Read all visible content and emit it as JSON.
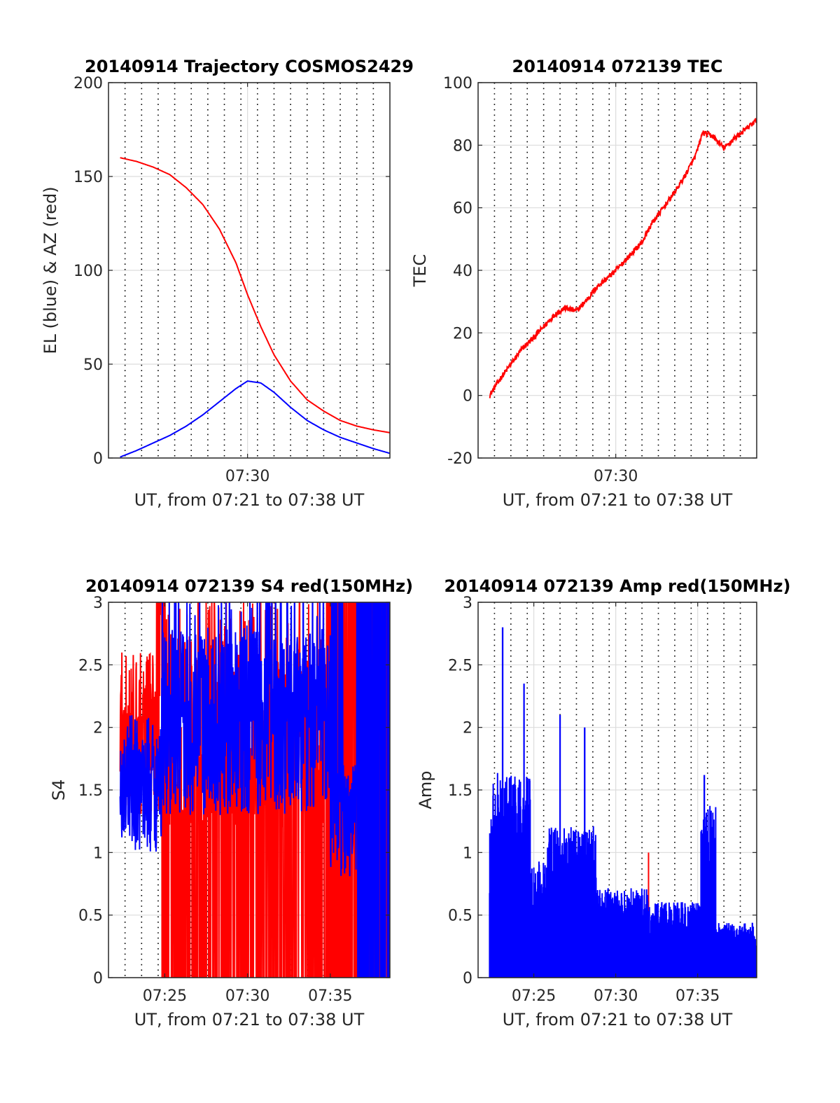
{
  "figure": {
    "background": "#ffffff",
    "colors": {
      "red": "#ff0000",
      "blue": "#0000ff",
      "grid": "#dcdcdc",
      "vline": "#000000"
    },
    "time_start_min": 441.6,
    "time_end_min": 458.6,
    "vertical_dotted_lines_min": [
      442.6,
      443.6,
      444.6,
      445.6,
      446.6,
      447.6,
      448.6,
      449.6,
      450.6,
      451.6,
      452.6,
      453.6,
      454.6,
      455.6,
      456.6,
      457.6
    ]
  },
  "chart_data": [
    {
      "id": "trajectory",
      "type": "line",
      "title": "20140914 Trajectory COSMOS2429",
      "xlabel": "UT, from 07:21 to 07:38 UT",
      "ylabel": "EL (blue) & AZ (red)",
      "xticks": [
        {
          "value": 450,
          "label": "07:30"
        }
      ],
      "ylim": [
        0,
        200
      ],
      "yticks": [
        {
          "value": 0,
          "label": "0"
        },
        {
          "value": 50,
          "label": "50"
        },
        {
          "value": 100,
          "label": "100"
        },
        {
          "value": 150,
          "label": "150"
        },
        {
          "value": 200,
          "label": "200"
        }
      ],
      "grid": true,
      "series": [
        {
          "color": "#ff0000",
          "x": [
            442.3,
            443.3,
            444.3,
            445.3,
            446.3,
            447.3,
            448.3,
            449.3,
            450.0,
            450.8,
            451.6,
            452.6,
            453.6,
            454.6,
            455.6,
            456.6,
            457.6,
            458.6
          ],
          "y": [
            160,
            158,
            155,
            151,
            144,
            135,
            122,
            104,
            87,
            70,
            55,
            41,
            31,
            25,
            20,
            17,
            15,
            13.5
          ]
        },
        {
          "color": "#0000ff",
          "x": [
            442.3,
            443.3,
            444.3,
            445.3,
            446.3,
            447.3,
            448.3,
            449.3,
            450.0,
            450.8,
            451.6,
            452.6,
            453.6,
            454.6,
            455.6,
            456.6,
            457.6,
            458.6
          ],
          "y": [
            0.5,
            4,
            8,
            12,
            17,
            23,
            30,
            37,
            41,
            40,
            35,
            27,
            20,
            15,
            11,
            8,
            5,
            2.5
          ]
        }
      ]
    },
    {
      "id": "tec",
      "type": "line",
      "title": "20140914 072139 TEC",
      "xlabel": "UT, from 07:21 to 07:38 UT",
      "ylabel": "TEC",
      "xticks": [
        {
          "value": 450,
          "label": "07:30"
        }
      ],
      "ylim": [
        -20,
        100
      ],
      "yticks": [
        {
          "value": -20,
          "label": "-20"
        },
        {
          "value": 0,
          "label": "0"
        },
        {
          "value": 20,
          "label": "20"
        },
        {
          "value": 40,
          "label": "40"
        },
        {
          "value": 60,
          "label": "60"
        },
        {
          "value": 80,
          "label": "80"
        },
        {
          "value": 100,
          "label": "100"
        }
      ],
      "grid": true,
      "series": [
        {
          "color": "#ff0000",
          "x": [
            442.3,
            442.9,
            443.6,
            444.3,
            444.9,
            445.6,
            446.3,
            446.9,
            447.6,
            448.3,
            448.9,
            449.6,
            450.2,
            450.9,
            451.6,
            452.2,
            452.9,
            453.6,
            454.2,
            454.9,
            455.3,
            455.9,
            456.6,
            457.2,
            457.9,
            458.6
          ],
          "y": [
            0,
            5,
            10,
            15,
            18,
            22,
            26,
            28,
            27,
            31,
            35,
            38,
            41,
            45,
            49,
            55,
            60,
            65,
            70,
            77,
            84,
            83,
            79,
            82,
            85,
            88
          ]
        }
      ]
    },
    {
      "id": "s4",
      "type": "line",
      "title": "20140914 072139 S4 red(150MHz)",
      "xlabel": "UT, from 07:21 to 07:38 UT",
      "ylabel": "S4",
      "xticks": [
        {
          "value": 445,
          "label": "07:25"
        },
        {
          "value": 450,
          "label": "07:30"
        },
        {
          "value": 455,
          "label": "07:35"
        }
      ],
      "ylim": [
        0,
        3
      ],
      "yticks": [
        {
          "value": 0,
          "label": "0"
        },
        {
          "value": 0.5,
          "label": "0.5"
        },
        {
          "value": 1,
          "label": "1"
        },
        {
          "value": 1.5,
          "label": "1.5"
        },
        {
          "value": 2,
          "label": "2"
        },
        {
          "value": 2.5,
          "label": "2.5"
        },
        {
          "value": 3,
          "label": "3"
        }
      ],
      "grid": true,
      "series": [
        {
          "color": "#ff0000",
          "x_range": [
            442.3,
            458.6
          ],
          "envelope": "high-variance, mostly 1.2-3 with many drops to 0 after 07:25"
        },
        {
          "color": "#0000ff",
          "x_range": [
            442.3,
            458.6
          ],
          "envelope": "1.0-3 noisy, saturating at 3 after 07:35"
        }
      ]
    },
    {
      "id": "amp",
      "type": "line",
      "title": "20140914 072139 Amp red(150MHz)",
      "xlabel": "UT, from 07:21 to 07:38 UT",
      "ylabel": "Amp",
      "xticks": [
        {
          "value": 445,
          "label": "07:25"
        },
        {
          "value": 450,
          "label": "07:30"
        },
        {
          "value": 455,
          "label": "07:35"
        }
      ],
      "ylim": [
        0,
        3
      ],
      "yticks": [
        {
          "value": 0,
          "label": "0"
        },
        {
          "value": 0.5,
          "label": "0.5"
        },
        {
          "value": 1,
          "label": "1"
        },
        {
          "value": 1.5,
          "label": "1.5"
        },
        {
          "value": 2,
          "label": "2"
        },
        {
          "value": 2.5,
          "label": "2.5"
        },
        {
          "value": 3,
          "label": "3"
        }
      ],
      "grid": true,
      "series": [
        {
          "color": "#0000ff",
          "x_range": [
            442.3,
            458.6
          ],
          "peaks": [
            {
              "x": 443.1,
              "y": 2.8
            },
            {
              "x": 444.4,
              "y": 2.35
            },
            {
              "x": 446.6,
              "y": 2.1
            },
            {
              "x": 448.1,
              "y": 2.0
            },
            {
              "x": 455.4,
              "y": 1.62
            }
          ]
        },
        {
          "color": "#ff0000",
          "x_range": [
            442.3,
            458.6
          ],
          "peaks": [
            {
              "x": 452.0,
              "y": 1.0
            }
          ]
        }
      ]
    }
  ]
}
